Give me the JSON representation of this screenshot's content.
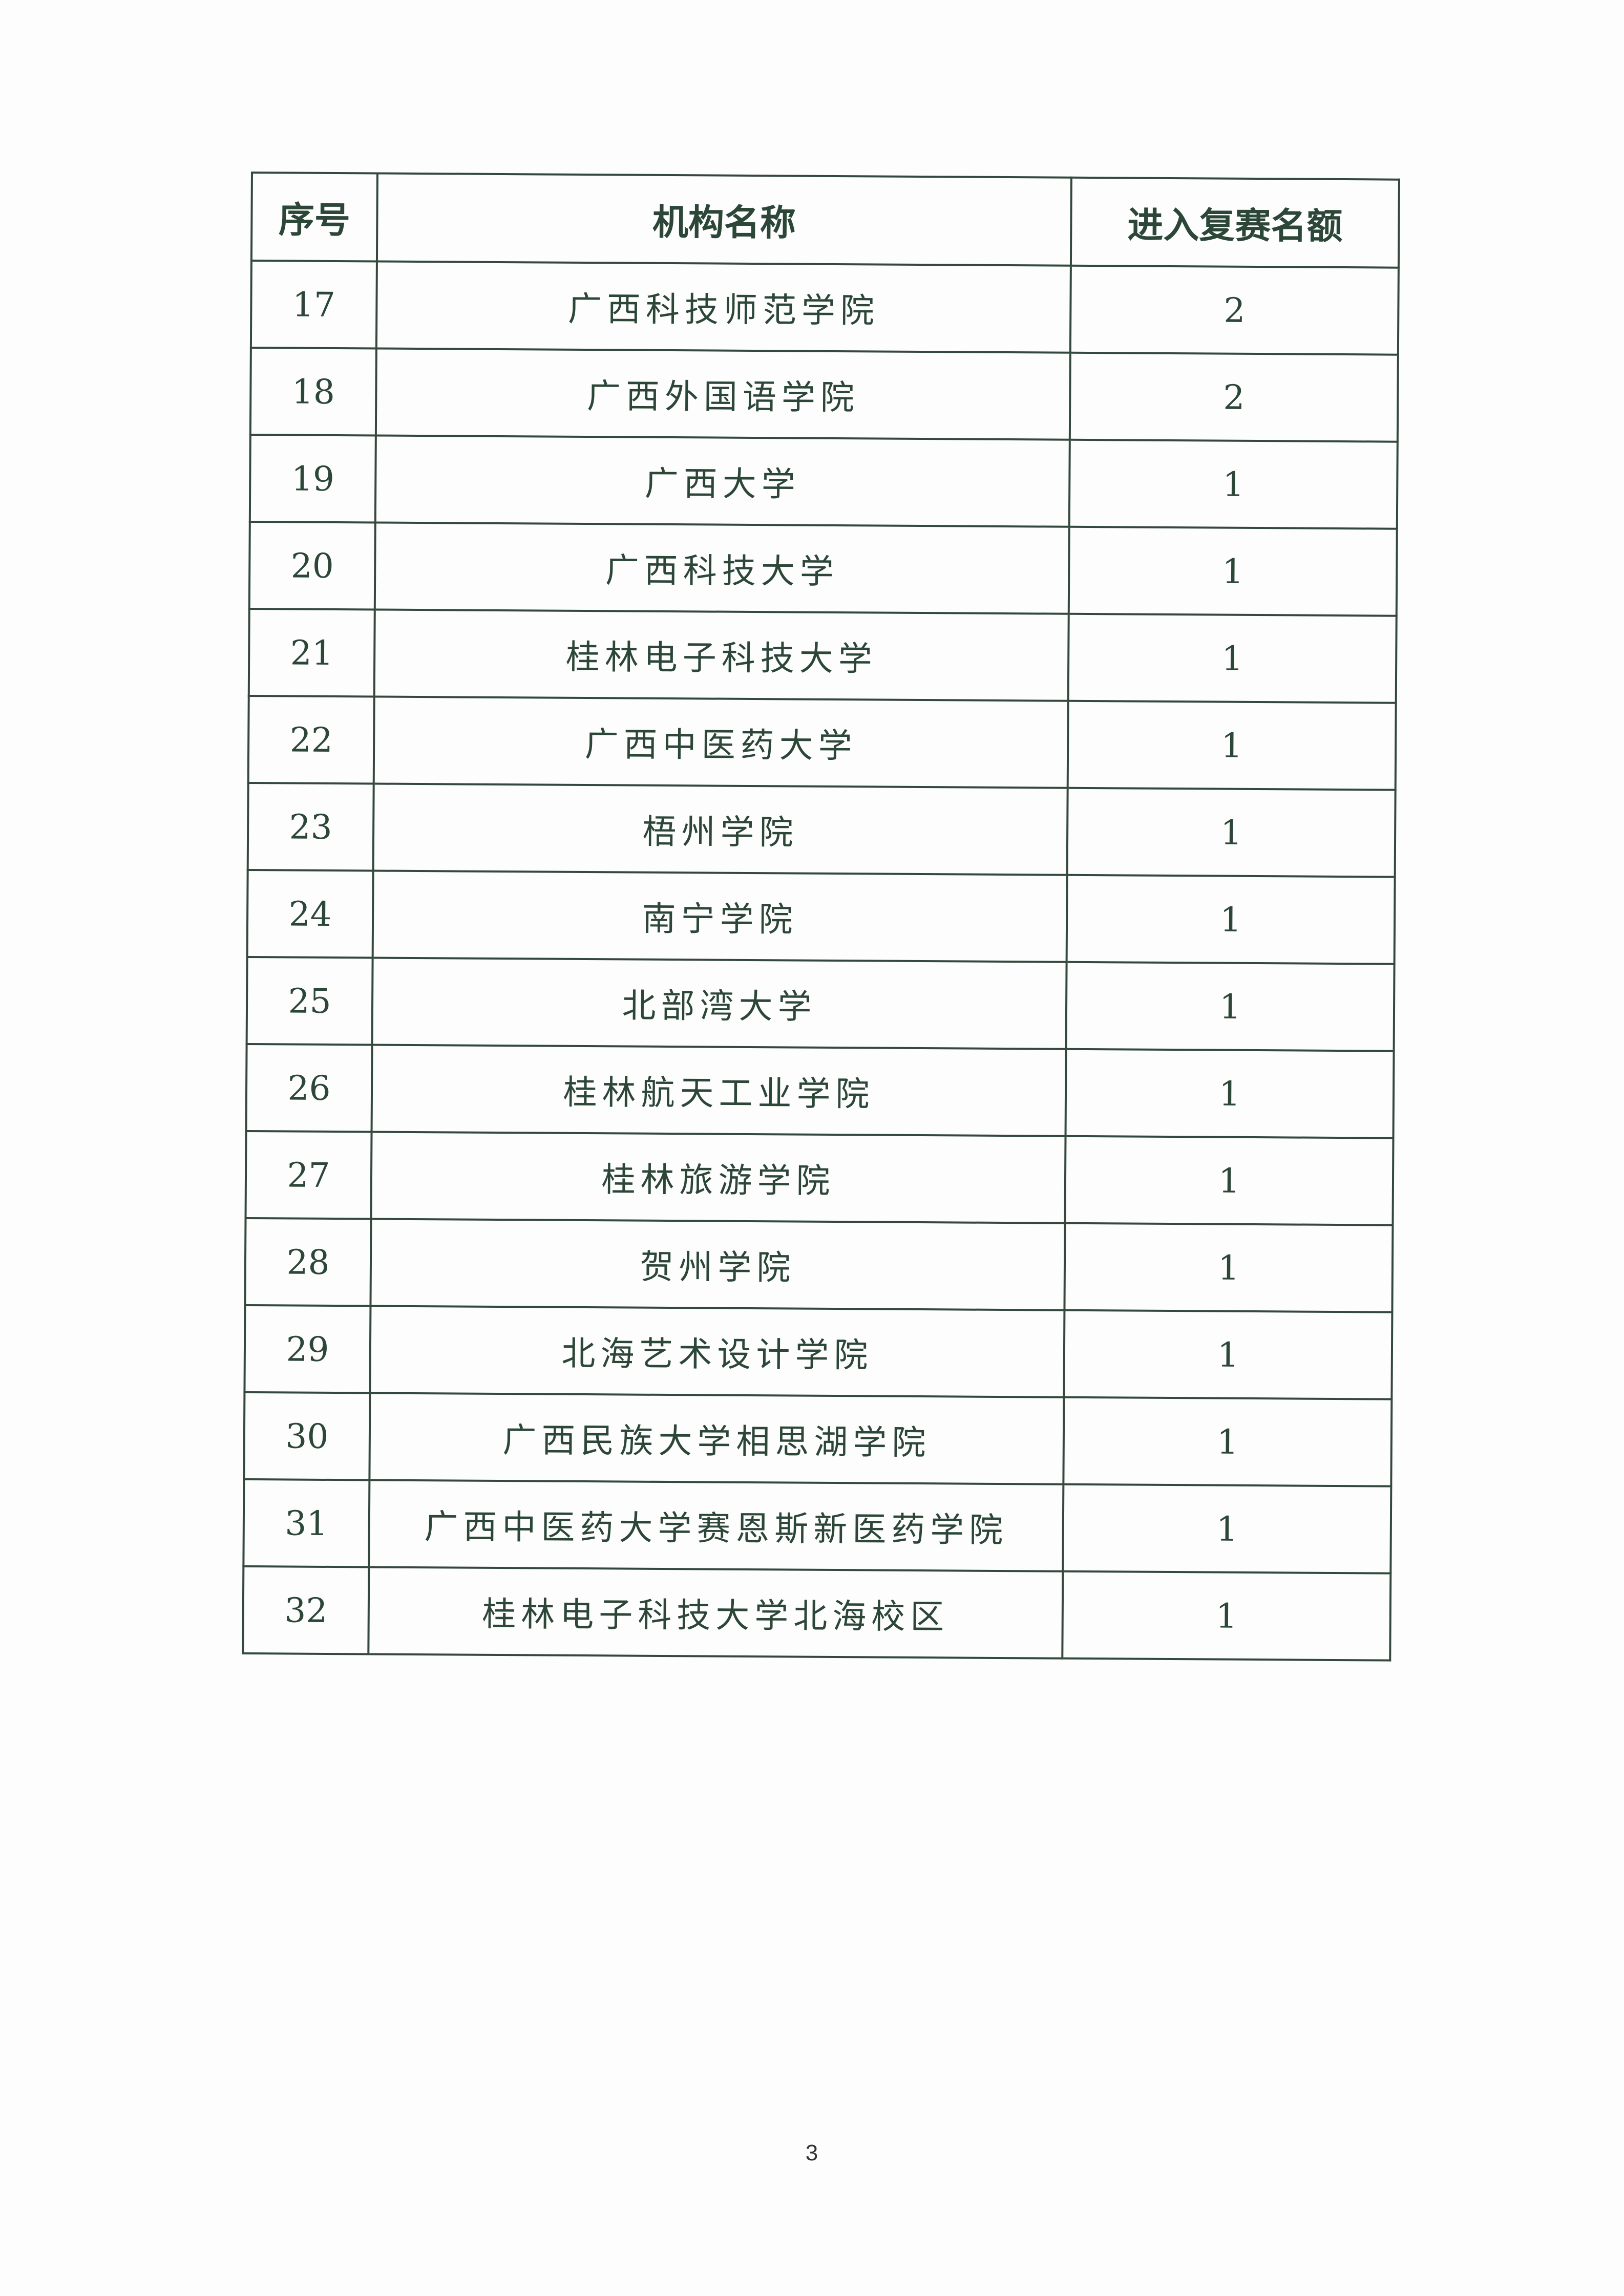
{
  "table": {
    "headers": [
      "序号",
      "机构名称",
      "进入复赛名额"
    ],
    "rows": [
      {
        "no": "17",
        "name": "广西科技师范学院",
        "quota": "2"
      },
      {
        "no": "18",
        "name": "广西外国语学院",
        "quota": "2"
      },
      {
        "no": "19",
        "name": "广西大学",
        "quota": "1"
      },
      {
        "no": "20",
        "name": "广西科技大学",
        "quota": "1"
      },
      {
        "no": "21",
        "name": "桂林电子科技大学",
        "quota": "1"
      },
      {
        "no": "22",
        "name": "广西中医药大学",
        "quota": "1"
      },
      {
        "no": "23",
        "name": "梧州学院",
        "quota": "1"
      },
      {
        "no": "24",
        "name": "南宁学院",
        "quota": "1"
      },
      {
        "no": "25",
        "name": "北部湾大学",
        "quota": "1"
      },
      {
        "no": "26",
        "name": "桂林航天工业学院",
        "quota": "1"
      },
      {
        "no": "27",
        "name": "桂林旅游学院",
        "quota": "1"
      },
      {
        "no": "28",
        "name": "贺州学院",
        "quota": "1"
      },
      {
        "no": "29",
        "name": "北海艺术设计学院",
        "quota": "1"
      },
      {
        "no": "30",
        "name": "广西民族大学相思湖学院",
        "quota": "1"
      },
      {
        "no": "31",
        "name": "广西中医药大学赛恩斯新医药学院",
        "quota": "1"
      },
      {
        "no": "32",
        "name": "桂林电子科技大学北海校区",
        "quota": "1"
      }
    ]
  },
  "page_number": "3"
}
